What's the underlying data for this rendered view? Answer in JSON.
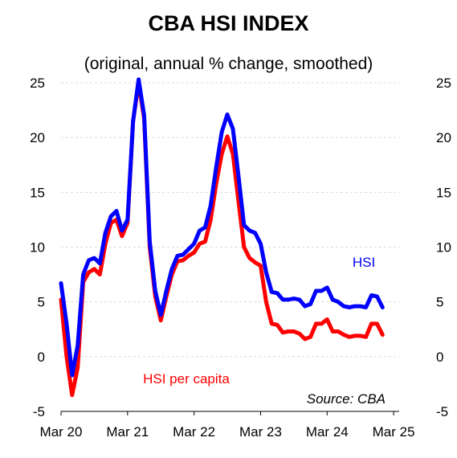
{
  "title": "CBA HSI INDEX",
  "subtitle": "(original, annual % change, smoothed)",
  "source": "Source: CBA",
  "colors": {
    "hsi": "#0000ff",
    "hsi_per_capita": "#ff0000",
    "grid": "#d9d9d9"
  },
  "chart_data": {
    "type": "line",
    "ylim": [
      -5,
      25
    ],
    "yticks": [
      -5,
      0,
      5,
      10,
      15,
      20,
      25
    ],
    "xlim": [
      "2020-03",
      "2025-04"
    ],
    "xticks": [
      {
        "label": "Mar 20",
        "x": "2020-03"
      },
      {
        "label": "Mar 21",
        "x": "2021-03"
      },
      {
        "label": "Mar 22",
        "x": "2022-03"
      },
      {
        "label": "Mar 23",
        "x": "2023-03"
      },
      {
        "label": "Mar 24",
        "x": "2024-03"
      },
      {
        "label": "Mar 25",
        "x": "2025-03"
      }
    ],
    "grid": true,
    "series": [
      {
        "name": "HSI",
        "color": "#0000ff",
        "points": [
          [
            "2020-03",
            6.7
          ],
          [
            "2020-04",
            3.0
          ],
          [
            "2020-05",
            -1.7
          ],
          [
            "2020-06",
            1.0
          ],
          [
            "2020-07",
            7.5
          ],
          [
            "2020-08",
            8.8
          ],
          [
            "2020-09",
            9.0
          ],
          [
            "2020-10",
            8.5
          ],
          [
            "2020-11",
            11.3
          ],
          [
            "2020-12",
            12.8
          ],
          [
            "2021-01",
            13.3
          ],
          [
            "2021-02",
            11.5
          ],
          [
            "2021-03",
            12.5
          ],
          [
            "2021-04",
            21.5
          ],
          [
            "2021-05",
            25.3
          ],
          [
            "2021-06",
            22.0
          ],
          [
            "2021-07",
            10.5
          ],
          [
            "2021-08",
            6.0
          ],
          [
            "2021-09",
            3.8
          ],
          [
            "2021-10",
            6.0
          ],
          [
            "2021-11",
            8.0
          ],
          [
            "2021-12",
            9.2
          ],
          [
            "2022-01",
            9.3
          ],
          [
            "2022-02",
            9.8
          ],
          [
            "2022-03",
            10.3
          ],
          [
            "2022-04",
            11.5
          ],
          [
            "2022-05",
            11.8
          ],
          [
            "2022-06",
            13.8
          ],
          [
            "2022-07",
            17.3
          ],
          [
            "2022-08",
            20.5
          ],
          [
            "2022-09",
            22.1
          ],
          [
            "2022-10",
            20.8
          ],
          [
            "2022-11",
            16.5
          ],
          [
            "2022-12",
            12.0
          ],
          [
            "2023-01",
            11.5
          ],
          [
            "2023-02",
            11.3
          ],
          [
            "2023-03",
            10.3
          ],
          [
            "2023-04",
            7.7
          ],
          [
            "2023-05",
            5.9
          ],
          [
            "2023-06",
            5.8
          ],
          [
            "2023-07",
            5.2
          ],
          [
            "2023-08",
            5.2
          ],
          [
            "2023-09",
            5.3
          ],
          [
            "2023-10",
            5.2
          ],
          [
            "2023-11",
            4.6
          ],
          [
            "2023-12",
            4.8
          ],
          [
            "2024-01",
            6.0
          ],
          [
            "2024-02",
            6.0
          ],
          [
            "2024-03",
            6.3
          ],
          [
            "2024-04",
            5.2
          ],
          [
            "2024-05",
            5.0
          ],
          [
            "2024-06",
            4.6
          ],
          [
            "2024-07",
            4.5
          ],
          [
            "2024-08",
            4.6
          ],
          [
            "2024-09",
            4.6
          ],
          [
            "2024-10",
            4.5
          ],
          [
            "2024-11",
            5.6
          ],
          [
            "2024-12",
            5.5
          ],
          [
            "2025-01",
            4.5
          ]
        ]
      },
      {
        "name": "HSI per capita",
        "color": "#ff0000",
        "points": [
          [
            "2020-03",
            5.2
          ],
          [
            "2020-04",
            0.0
          ],
          [
            "2020-05",
            -3.5
          ],
          [
            "2020-06",
            -1.0
          ],
          [
            "2020-07",
            6.8
          ],
          [
            "2020-08",
            7.7
          ],
          [
            "2020-09",
            8.0
          ],
          [
            "2020-10",
            7.5
          ],
          [
            "2020-11",
            10.3
          ],
          [
            "2020-12",
            12.2
          ],
          [
            "2021-01",
            12.5
          ],
          [
            "2021-02",
            11.0
          ],
          [
            "2021-03",
            12.2
          ],
          [
            "2021-04",
            21.5
          ],
          [
            "2021-05",
            25.0
          ],
          [
            "2021-06",
            21.7
          ],
          [
            "2021-07",
            10.0
          ],
          [
            "2021-08",
            5.5
          ],
          [
            "2021-09",
            3.3
          ],
          [
            "2021-10",
            5.5
          ],
          [
            "2021-11",
            7.5
          ],
          [
            "2021-12",
            8.7
          ],
          [
            "2022-01",
            8.8
          ],
          [
            "2022-02",
            9.2
          ],
          [
            "2022-03",
            9.5
          ],
          [
            "2022-04",
            10.3
          ],
          [
            "2022-05",
            10.5
          ],
          [
            "2022-06",
            12.5
          ],
          [
            "2022-07",
            15.8
          ],
          [
            "2022-08",
            18.5
          ],
          [
            "2022-09",
            20.1
          ],
          [
            "2022-10",
            18.5
          ],
          [
            "2022-11",
            14.2
          ],
          [
            "2022-12",
            10.0
          ],
          [
            "2023-01",
            9.0
          ],
          [
            "2023-02",
            8.6
          ],
          [
            "2023-03",
            8.3
          ],
          [
            "2023-04",
            5.0
          ],
          [
            "2023-05",
            3.0
          ],
          [
            "2023-06",
            2.9
          ],
          [
            "2023-07",
            2.2
          ],
          [
            "2023-08",
            2.3
          ],
          [
            "2023-09",
            2.3
          ],
          [
            "2023-10",
            2.1
          ],
          [
            "2023-11",
            1.6
          ],
          [
            "2023-12",
            1.8
          ],
          [
            "2024-01",
            3.0
          ],
          [
            "2024-02",
            3.0
          ],
          [
            "2024-03",
            3.4
          ],
          [
            "2024-04",
            2.3
          ],
          [
            "2024-05",
            2.3
          ],
          [
            "2024-06",
            2.0
          ],
          [
            "2024-07",
            1.8
          ],
          [
            "2024-08",
            1.9
          ],
          [
            "2024-09",
            1.9
          ],
          [
            "2024-10",
            1.8
          ],
          [
            "2024-11",
            3.0
          ],
          [
            "2024-12",
            3.0
          ],
          [
            "2025-01",
            2.0
          ]
        ]
      }
    ],
    "annotations": [
      {
        "text": "HSI",
        "series": "HSI"
      },
      {
        "text": "HSI per capita",
        "series": "HSI per capita"
      }
    ]
  }
}
